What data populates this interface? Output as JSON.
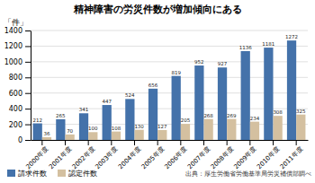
{
  "chart_data": {
    "type": "bar",
    "title": "精神障害の労災件数が増加傾向にある",
    "ylabel": "「件」",
    "annotations": [
      "出典：厚生労働省労働基準局労災補償部調べ"
    ],
    "categories": [
      "2000年度",
      "2001年度",
      "2002年度",
      "2003年度",
      "2004年度",
      "2005年度",
      "2006年度",
      "2007年度",
      "2008年度",
      "2009年度",
      "2010年度",
      "2011年度"
    ],
    "series": [
      {
        "name": "請求件数",
        "color": "#4472aa",
        "values": [
          212,
          265,
          341,
          447,
          524,
          656,
          819,
          952,
          927,
          1136,
          1181,
          1272
        ]
      },
      {
        "name": "認定件数",
        "color": "#d4c0a0",
        "values": [
          36,
          70,
          100,
          108,
          130,
          127,
          205,
          268,
          269,
          234,
          308,
          325
        ]
      }
    ],
    "ylim": [
      0,
      1400
    ],
    "yticks": [
      0,
      200,
      400,
      600,
      800,
      1000,
      1200,
      1400
    ],
    "grid": true,
    "legend": "bottom",
    "data_labels": true
  }
}
